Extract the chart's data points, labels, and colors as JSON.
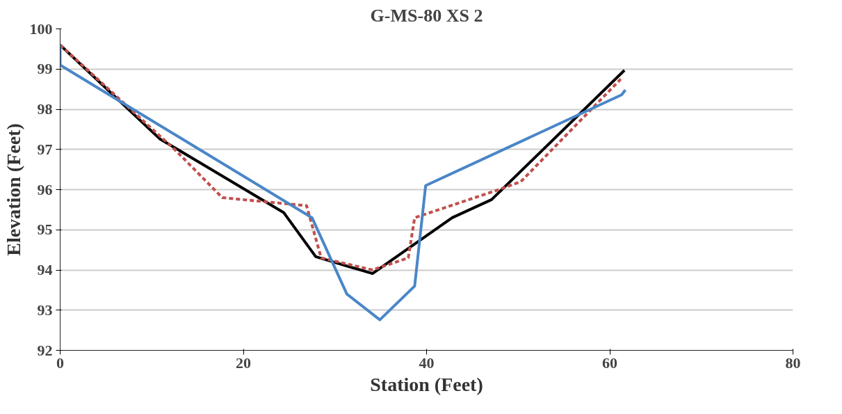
{
  "chart_data": {
    "type": "line",
    "title": "G-MS-80 XS 2",
    "xlabel": "Station (Feet)",
    "ylabel": "Elevation (Feet)",
    "xlim": [
      0,
      80
    ],
    "xticks": [
      0,
      20,
      40,
      60,
      80
    ],
    "ylim": [
      92,
      100
    ],
    "yticks": [
      92,
      93,
      94,
      95,
      96,
      97,
      98,
      99,
      100
    ],
    "grid": "y",
    "series": [
      {
        "color": "#000000",
        "line_style": "solid",
        "x": [
          0,
          10.9,
          24.4,
          27.9,
          34.1,
          42.8,
          47.1,
          61.6
        ],
        "values": [
          99.6,
          97.26,
          95.43,
          94.33,
          93.91,
          95.3,
          95.75,
          98.97
        ]
      },
      {
        "color": "#c0504d",
        "line_style": "dashed",
        "x": [
          0,
          12.5,
          17.7,
          26.9,
          28.5,
          34.1,
          38.0,
          38.7,
          47.9,
          50.3,
          61.2
        ],
        "values": [
          99.6,
          97.0,
          95.8,
          95.6,
          94.3,
          94.0,
          94.3,
          95.3,
          96.0,
          96.2,
          98.75
        ]
      },
      {
        "color": "#4a86c8",
        "line_style": "solid",
        "x": [
          0,
          0,
          27.5,
          31.3,
          34.9,
          38.7,
          39.9,
          61.3,
          61.7
        ],
        "values": [
          99.6,
          99.1,
          95.3,
          93.4,
          92.76,
          93.6,
          96.1,
          98.36,
          98.48
        ]
      }
    ]
  }
}
